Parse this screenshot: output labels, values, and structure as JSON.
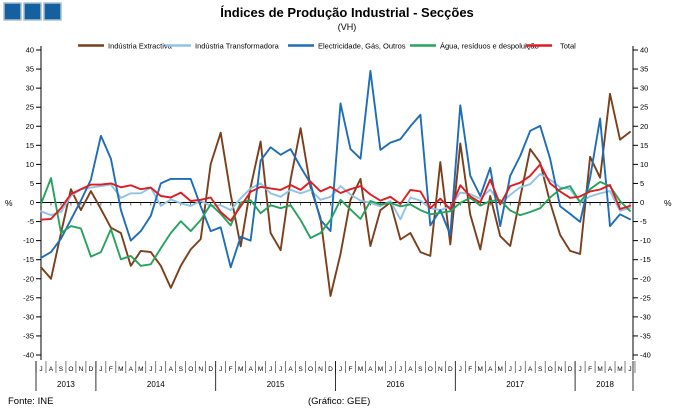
{
  "header": {
    "title": "Índices de Produção Industrial - Secções",
    "subtitle": "(VH)"
  },
  "logo": {
    "squares": 3,
    "fill": "#15609f",
    "border": "#a9c0d6"
  },
  "footer": {
    "source": "Fonte: INE",
    "credit": "(Gráfico: GEE)"
  },
  "axis": {
    "unit_label": "%"
  },
  "chart_data": {
    "type": "line",
    "title": "Índices de Produção Industrial - Secções",
    "subtitle": "(VH)",
    "ylabel": "%",
    "ylim": [
      -40,
      40
    ],
    "y_step": 5,
    "grid": false,
    "legend_position": "top",
    "x_month_letters": [
      "J",
      "A",
      "S",
      "O",
      "N",
      "D",
      "J",
      "F",
      "M",
      "A",
      "M",
      "J",
      "J",
      "A",
      "S",
      "O",
      "N",
      "D",
      "J",
      "F",
      "M",
      "A",
      "M",
      "J",
      "J",
      "A",
      "S",
      "O",
      "N",
      "D",
      "J",
      "F",
      "M",
      "A",
      "M",
      "J",
      "J",
      "A",
      "S",
      "O",
      "N",
      "D",
      "J",
      "F",
      "M",
      "A",
      "M",
      "J",
      "J",
      "A",
      "S",
      "O",
      "N",
      "D",
      "J",
      "F",
      "M",
      "A",
      "M",
      "J"
    ],
    "years": [
      {
        "label": "2013",
        "months": 6
      },
      {
        "label": "2014",
        "months": 12
      },
      {
        "label": "2015",
        "months": 12
      },
      {
        "label": "2016",
        "months": 12
      },
      {
        "label": "2017",
        "months": 12
      },
      {
        "label": "2018",
        "months": 6
      }
    ],
    "series": [
      {
        "name": "Indústria Extractiva",
        "color": "#7b3f1c",
        "values": [
          -17,
          -20,
          -8,
          3.5,
          -2,
          3,
          -1.7,
          -6.6,
          -8,
          -16.6,
          -12.7,
          -13,
          -16.6,
          -22.4,
          -16.6,
          -12.3,
          -9.6,
          10.1,
          18.3,
          2.1,
          -11.5,
          4,
          16,
          -8,
          -12.5,
          6,
          19.5,
          4.1,
          -4.1,
          -24.5,
          -13.5,
          0.7,
          6.2,
          -11.4,
          -2,
          0,
          -9.7,
          -8,
          -13,
          -14,
          10.6,
          -11,
          15.5,
          -3.2,
          -12.3,
          1.7,
          -8.8,
          -11.4,
          1.3,
          14,
          10.4,
          0,
          -8.5,
          -12.7,
          -13.5,
          12,
          6.5,
          28.5,
          16.5,
          18.5
        ]
      },
      {
        "name": "Indústria Transformadora",
        "color": "#8fc3e8",
        "values": [
          -2.3,
          -3.3,
          -2.5,
          1.7,
          3.5,
          3.9,
          4.3,
          4.7,
          1.2,
          2.4,
          2.4,
          3.9,
          -0.9,
          0.8,
          -0.2,
          -0.9,
          0.4,
          -0.9,
          -0.7,
          -2,
          1.1,
          3.7,
          5,
          2.4,
          1.5,
          3.3,
          2.4,
          3.3,
          0.7,
          1.5,
          4.3,
          2.1,
          0.5,
          -0.1,
          -1,
          0.4,
          -4.4,
          1.3,
          0.5,
          -1.5,
          -2,
          -1,
          2.6,
          2.2,
          1,
          3.4,
          -0.2,
          2,
          4,
          4.8,
          7.5,
          6,
          4,
          3.5,
          0,
          1.6,
          2.4,
          3,
          -2.2,
          -1.4
        ]
      },
      {
        "name": "Electricidade, Gás, Outros",
        "color": "#1e6db6",
        "values": [
          -14.5,
          -13,
          -9.5,
          -4.5,
          0.5,
          6,
          17.5,
          11.5,
          -2,
          -10,
          -7.5,
          -3.5,
          5,
          6.2,
          6.2,
          6.2,
          -1,
          -7.5,
          -6.5,
          -17,
          -9,
          -10,
          11,
          14.5,
          12.5,
          14,
          9.3,
          5,
          -4.6,
          -7.5,
          26,
          14,
          11.5,
          34.5,
          13.8,
          15.7,
          16.6,
          20,
          23,
          -6,
          -2,
          -8.5,
          25.5,
          7,
          1.7,
          9.1,
          -6.2,
          7,
          12.2,
          18.8,
          20.1,
          11.5,
          -1,
          -3,
          -5.1,
          6.5,
          22,
          -6.2,
          -3.1,
          -4.4
        ]
      },
      {
        "name": "Água, resíduos e despoluição",
        "color": "#27a35d",
        "values": [
          -0.4,
          6.4,
          -8,
          -6.2,
          -6.8,
          -14.2,
          -13,
          -7,
          -14.9,
          -14,
          -16.6,
          -16.2,
          -12,
          -8,
          -4.9,
          -7.5,
          -4.6,
          -0.5,
          -3,
          -6,
          0,
          0.6,
          -2.8,
          -0.7,
          -1.5,
          -0.7,
          -4.6,
          -9.3,
          -8,
          -4.6,
          0.7,
          -1.8,
          -4.3,
          0.4,
          -0.5,
          -0.1,
          -1,
          -0.5,
          -2,
          -3.1,
          -2.7,
          -2.3,
          -0.1,
          1.2,
          -0.8,
          0.4,
          0.6,
          -2.1,
          -3.3,
          -2.5,
          -1.5,
          1.3,
          3.5,
          4.3,
          0.1,
          3.5,
          5.4,
          4.3,
          0.4,
          -2.2
        ]
      },
      {
        "name": "Total",
        "color": "#dd1d21",
        "values": [
          -4.5,
          -4.3,
          -1.5,
          2.2,
          3.5,
          4.7,
          4.7,
          5,
          4,
          4.5,
          3.5,
          3.9,
          1.7,
          1.3,
          2.6,
          0.4,
          0.7,
          1.3,
          -2.5,
          -4.8,
          -1,
          2.8,
          4.1,
          3.7,
          3.3,
          4.6,
          3.3,
          5.5,
          2.9,
          4.1,
          2.5,
          3.5,
          4.3,
          2.1,
          0.5,
          1.5,
          -0.4,
          3.3,
          2.9,
          -1.5,
          1,
          -1.8,
          4.5,
          1.6,
          0,
          6,
          -0.5,
          4.3,
          5.2,
          7,
          10,
          5,
          2.9,
          1.2,
          1.6,
          2.9,
          3.4,
          4.6,
          -1.7,
          -0.9
        ]
      }
    ]
  }
}
